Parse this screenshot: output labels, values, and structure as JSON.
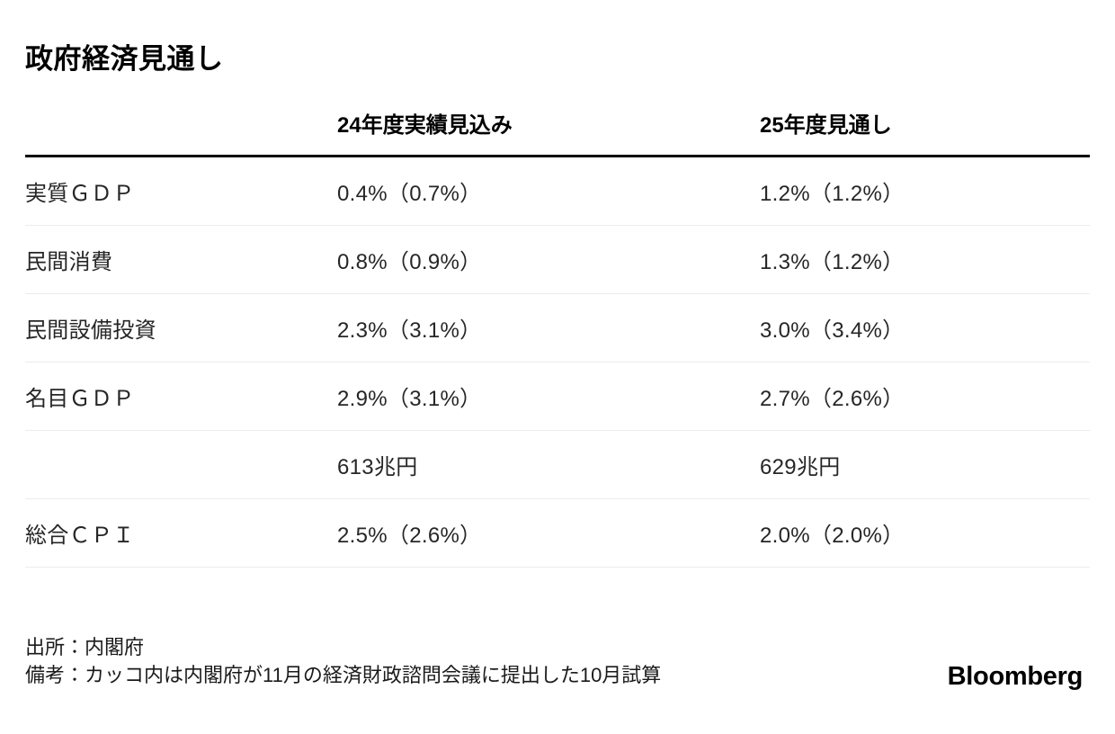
{
  "title": "政府経済見通し",
  "chart_data": {
    "type": "table",
    "title": "政府経済見通し",
    "columns": [
      "",
      "24年度実績見込み",
      "25年度見通し"
    ],
    "rows": [
      {
        "label": "実質ＧＤＰ",
        "fy24": "0.4%（0.7%）",
        "fy25": "1.2%（1.2%）"
      },
      {
        "label": "民間消費",
        "fy24": "0.8%（0.9%）",
        "fy25": "1.3%（1.2%）"
      },
      {
        "label": "民間設備投資",
        "fy24": "2.3%（3.1%）",
        "fy25": "3.0%（3.4%）"
      },
      {
        "label": "名目ＧＤＰ",
        "fy24": "2.9%（3.1%）",
        "fy25": "2.7%（2.6%）"
      },
      {
        "label": "",
        "fy24": "613兆円",
        "fy25": "629兆円"
      },
      {
        "label": "総合ＣＰＩ",
        "fy24": "2.5%（2.6%）",
        "fy25": "2.0%（2.0%）"
      }
    ],
    "source": "出所：内閣府",
    "note": "備考：カッコ内は内閣府が11月の経済財政諮問会議に提出した10月試算"
  },
  "footer": {
    "source": "出所：内閣府",
    "note": "備考：カッコ内は内閣府が11月の経済財政諮問会議に提出した10月試算",
    "brand": "Bloomberg"
  },
  "colors": {
    "background": "#ffffff",
    "heading": "#000000",
    "body_text": "#262626",
    "header_rule": "#000000",
    "row_separator": "#ececec"
  }
}
